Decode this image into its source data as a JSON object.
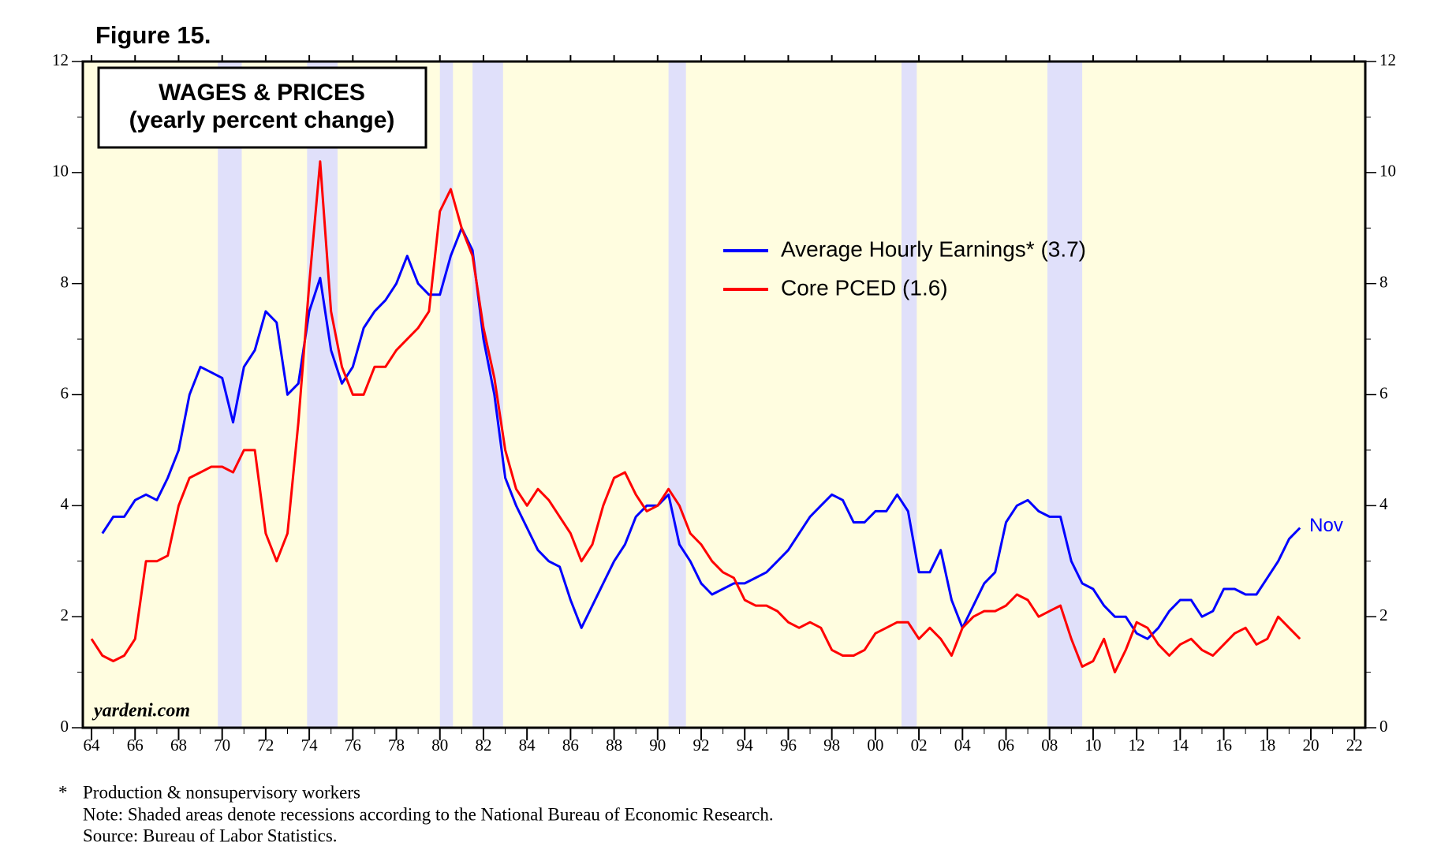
{
  "chart_data": {
    "type": "line",
    "figure_label": "Figure 15.",
    "title": "WAGES & PRICES",
    "subtitle": "(yearly percent change)",
    "watermark": "yardeni.com",
    "end_label": "Nov",
    "footnotes": [
      "*",
      "Production & nonsupervisory workers",
      "Note: Shaded areas denote recessions according to the National Bureau of Economic Research.",
      "Source: Bureau of Labor Statistics."
    ],
    "x": [
      1964,
      1964.5,
      1965,
      1965.5,
      1966,
      1966.5,
      1967,
      1967.5,
      1968,
      1968.5,
      1969,
      1969.5,
      1970,
      1970.5,
      1971,
      1971.5,
      1972,
      1972.5,
      1973,
      1973.5,
      1974,
      1974.5,
      1975,
      1975.5,
      1976,
      1976.5,
      1977,
      1977.5,
      1978,
      1978.5,
      1979,
      1979.5,
      1980,
      1980.5,
      1981,
      1981.5,
      1982,
      1982.5,
      1983,
      1983.5,
      1984,
      1984.5,
      1985,
      1985.5,
      1986,
      1986.5,
      1987,
      1987.5,
      1988,
      1988.5,
      1989,
      1989.5,
      1990,
      1990.5,
      1991,
      1991.5,
      1992,
      1992.5,
      1993,
      1993.5,
      1994,
      1994.5,
      1995,
      1995.5,
      1996,
      1996.5,
      1997,
      1997.5,
      1998,
      1998.5,
      1999,
      1999.5,
      2000,
      2000.5,
      2001,
      2001.5,
      2002,
      2002.5,
      2003,
      2003.5,
      2004,
      2004.5,
      2005,
      2005.5,
      2006,
      2006.5,
      2007,
      2007.5,
      2008,
      2008.5,
      2009,
      2009.5,
      2010,
      2010.5,
      2011,
      2011.5,
      2012,
      2012.5,
      2013,
      2013.5,
      2014,
      2014.5,
      2015,
      2015.5,
      2016,
      2016.5,
      2017,
      2017.5,
      2018,
      2018.5,
      2019,
      2019.5
    ],
    "series": [
      {
        "name": "Average Hourly Earnings* (3.7)",
        "color": "#0000ff",
        "values": [
          null,
          3.5,
          3.8,
          3.8,
          4.1,
          4.2,
          4.1,
          4.5,
          5.0,
          6.0,
          6.5,
          6.4,
          6.3,
          5.5,
          6.5,
          6.8,
          7.5,
          7.3,
          6.0,
          6.2,
          7.5,
          8.1,
          6.8,
          6.2,
          6.5,
          7.2,
          7.5,
          7.7,
          8.0,
          8.5,
          8.0,
          7.8,
          7.8,
          8.5,
          9.0,
          8.6,
          7.0,
          6.0,
          4.5,
          4.0,
          3.6,
          3.2,
          3.0,
          2.9,
          2.3,
          1.8,
          2.2,
          2.6,
          3.0,
          3.3,
          3.8,
          4.0,
          4.0,
          4.2,
          3.3,
          3.0,
          2.6,
          2.4,
          2.5,
          2.6,
          2.6,
          2.7,
          2.8,
          3.0,
          3.2,
          3.5,
          3.8,
          4.0,
          4.2,
          4.1,
          3.7,
          3.7,
          3.9,
          3.9,
          4.2,
          3.9,
          2.8,
          2.8,
          3.2,
          2.3,
          1.8,
          2.2,
          2.6,
          2.8,
          3.7,
          4.0,
          4.1,
          3.9,
          3.8,
          3.8,
          3.0,
          2.6,
          2.5,
          2.2,
          2.0,
          2.0,
          1.7,
          1.6,
          1.8,
          2.1,
          2.3,
          2.3,
          2.0,
          2.1,
          2.5,
          2.5,
          2.4,
          2.4,
          2.7,
          3.0,
          3.4,
          3.6
        ]
      },
      {
        "name": "Core PCED (1.6)",
        "color": "#ff0000",
        "values": [
          1.6,
          1.3,
          1.2,
          1.3,
          1.6,
          3.0,
          3.0,
          3.1,
          4.0,
          4.5,
          4.6,
          4.7,
          4.7,
          4.6,
          5.0,
          5.0,
          3.5,
          3.0,
          3.5,
          5.5,
          8.0,
          10.2,
          7.5,
          6.5,
          6.0,
          6.0,
          6.5,
          6.5,
          6.8,
          7.0,
          7.2,
          7.5,
          9.3,
          9.7,
          9.0,
          8.5,
          7.2,
          6.3,
          5.0,
          4.3,
          4.0,
          4.3,
          4.1,
          3.8,
          3.5,
          3.0,
          3.3,
          4.0,
          4.5,
          4.6,
          4.2,
          3.9,
          4.0,
          4.3,
          4.0,
          3.5,
          3.3,
          3.0,
          2.8,
          2.7,
          2.3,
          2.2,
          2.2,
          2.1,
          1.9,
          1.8,
          1.9,
          1.8,
          1.4,
          1.3,
          1.3,
          1.4,
          1.7,
          1.8,
          1.9,
          1.9,
          1.6,
          1.8,
          1.6,
          1.3,
          1.8,
          2.0,
          2.1,
          2.1,
          2.2,
          2.4,
          2.3,
          2.0,
          2.1,
          2.2,
          1.6,
          1.1,
          1.2,
          1.6,
          1.0,
          1.4,
          1.9,
          1.8,
          1.5,
          1.3,
          1.5,
          1.6,
          1.4,
          1.3,
          1.5,
          1.7,
          1.8,
          1.5,
          1.6,
          2.0,
          1.8,
          1.6
        ]
      }
    ],
    "recessions": [
      [
        1969.8,
        1970.9
      ],
      [
        1973.9,
        1975.3
      ],
      [
        1980.0,
        1980.6
      ],
      [
        1981.5,
        1982.9
      ],
      [
        1990.5,
        1991.3
      ],
      [
        2001.2,
        2001.9
      ],
      [
        2007.9,
        2009.5
      ]
    ],
    "xlim": [
      1963.6,
      2022.5
    ],
    "xticks": [
      {
        "value": 1964,
        "label": "64"
      },
      {
        "value": 1966,
        "label": "66"
      },
      {
        "value": 1968,
        "label": "68"
      },
      {
        "value": 1970,
        "label": "70"
      },
      {
        "value": 1972,
        "label": "72"
      },
      {
        "value": 1974,
        "label": "74"
      },
      {
        "value": 1976,
        "label": "76"
      },
      {
        "value": 1978,
        "label": "78"
      },
      {
        "value": 1980,
        "label": "80"
      },
      {
        "value": 1982,
        "label": "82"
      },
      {
        "value": 1984,
        "label": "84"
      },
      {
        "value": 1986,
        "label": "86"
      },
      {
        "value": 1988,
        "label": "88"
      },
      {
        "value": 1990,
        "label": "90"
      },
      {
        "value": 1992,
        "label": "92"
      },
      {
        "value": 1994,
        "label": "94"
      },
      {
        "value": 1996,
        "label": "96"
      },
      {
        "value": 1998,
        "label": "98"
      },
      {
        "value": 2000,
        "label": "00"
      },
      {
        "value": 2002,
        "label": "02"
      },
      {
        "value": 2004,
        "label": "04"
      },
      {
        "value": 2006,
        "label": "06"
      },
      {
        "value": 2008,
        "label": "08"
      },
      {
        "value": 2010,
        "label": "10"
      },
      {
        "value": 2012,
        "label": "12"
      },
      {
        "value": 2014,
        "label": "14"
      },
      {
        "value": 2016,
        "label": "16"
      },
      {
        "value": 2018,
        "label": "18"
      },
      {
        "value": 2020,
        "label": "20"
      },
      {
        "value": 2022,
        "label": "22"
      }
    ],
    "ylim": [
      0,
      12
    ],
    "yticks": [
      0,
      2,
      4,
      6,
      8,
      10,
      12
    ],
    "y2lim": [
      0,
      12
    ],
    "y2ticks": [
      0,
      2,
      4,
      6,
      8,
      10,
      12
    ]
  }
}
